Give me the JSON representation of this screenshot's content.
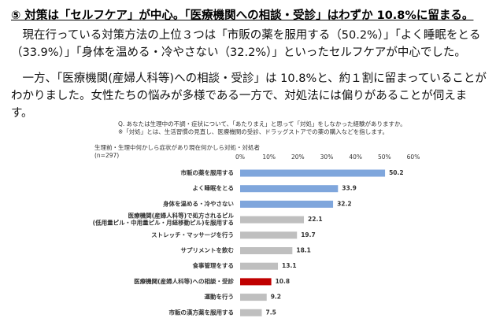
{
  "heading": "⑤ 対策は「セルフケア」が中心。「医療機関への相談・受診」はわずか 10.8%に留まる。",
  "paragraphs": [
    "現在行っている対策方法の上位３つは「市販の薬を服用する（50.2%）」「よく睡眠をとる（33.9%）」「身体を温める・冷やさない（32.2%）」といったセルフケアが中心でした。",
    "一方、「医療機関(産婦人科等)への相談・受診」は 10.8%と、約１割に留まっていることがわかりました。女性たちの悩みが多様である一方で、対処法には偏りがあることが伺えます。"
  ],
  "chart_data": {
    "type": "bar",
    "orientation": "horizontal",
    "question": "Q. あなたは生理中の不調・症状について、「あたりまえ」と思って「対処」をしなかった経験がありますか。",
    "note": "※「対処」とは、生活習慣の見直し、医療機関の受診、ドラッグストアでの薬の購入などを指します。",
    "subtitle": "生理前・生理中何かしら症状があり現在何かしら対処・対処者",
    "sample": "(n=297)",
    "categories": [
      "市販の薬を服用する",
      "よく睡眠をとる",
      "身体を温める・冷やさない",
      "医療機関(産婦人科等)で処方されるピル\n(低用量ピル・中用量ピル・月経移動ピル)を服用する",
      "ストレッチ・マッサージを行う",
      "サプリメントを飲む",
      "食事管理をする",
      "医療機関(産婦人科等)への相談・受診",
      "運動を行う",
      "市販の漢方薬を服用する"
    ],
    "values": [
      50.2,
      33.9,
      32.2,
      22.1,
      19.7,
      18.1,
      13.1,
      10.8,
      9.2,
      7.5
    ],
    "colors": [
      "#7fa6dc",
      "#7fa6dc",
      "#7fa6dc",
      "#bfbfbf",
      "#bfbfbf",
      "#bfbfbf",
      "#bfbfbf",
      "#c00000",
      "#bfbfbf",
      "#bfbfbf"
    ],
    "xlim": [
      0,
      60
    ],
    "xticks": [
      {
        "value": 0,
        "label": "0%"
      },
      {
        "value": 10,
        "label": "10%"
      },
      {
        "value": 20,
        "label": "20%"
      },
      {
        "value": 30,
        "label": "30%"
      },
      {
        "value": 40,
        "label": "40%"
      },
      {
        "value": 50,
        "label": "50%"
      },
      {
        "value": 60,
        "label": "60%"
      }
    ]
  }
}
